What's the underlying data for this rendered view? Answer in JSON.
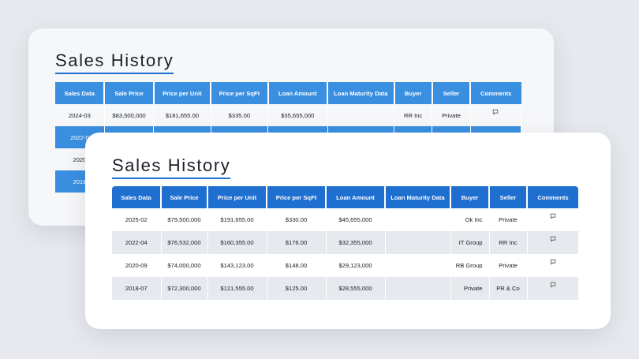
{
  "back_card": {
    "title": "Sales History",
    "columns": [
      "Sales Data",
      "Sale Price",
      "Price per Unit",
      "Price per SqFt",
      "Loan Amount",
      "Loan Maturity Data",
      "Buyer",
      "Seller",
      "Comments"
    ],
    "rows": [
      {
        "date": "2024-03",
        "sale_price": "$83,500,000",
        "price_unit": "$181,655.00",
        "price_sqft": "$335.00",
        "loan": "$35,655,000",
        "maturity": "",
        "buyer": "RR Inc",
        "seller": "Private"
      },
      {
        "date": "2022-0",
        "sale_price": "",
        "price_unit": "",
        "price_sqft": "",
        "loan": "",
        "maturity": "",
        "buyer": "",
        "seller": ""
      },
      {
        "date": "2020",
        "sale_price": "",
        "price_unit": "",
        "price_sqft": "",
        "loan": "",
        "maturity": "",
        "buyer": "",
        "seller": ""
      },
      {
        "date": "2018",
        "sale_price": "",
        "price_unit": "",
        "price_sqft": "",
        "loan": "",
        "maturity": "",
        "buyer": "",
        "seller": ""
      }
    ]
  },
  "front_card": {
    "title": "Sales History",
    "columns": [
      "Sales Data",
      "Sale Price",
      "Price per Unit",
      "Price per SqFt",
      "Loan Amount",
      "Loan Maturity Data",
      "Buyer",
      "Seller",
      "Comments"
    ],
    "rows": [
      {
        "date": "2025-02",
        "sale_price": "$79,500,000",
        "price_unit": "$191,655.00",
        "price_sqft": "$330.00",
        "loan": "$45,655,000",
        "maturity": "",
        "buyer": "Ok Inc",
        "seller": "Private"
      },
      {
        "date": "2022-04",
        "sale_price": "$76,532,000",
        "price_unit": "$160,355.00",
        "price_sqft": "$176.00",
        "loan": "$32,355,000",
        "maturity": "",
        "buyer": "IT Group",
        "seller": "RR Inc"
      },
      {
        "date": "2020-09",
        "sale_price": "$74,000,000",
        "price_unit": "$143,123.00",
        "price_sqft": "$148.00",
        "loan": "$29,123,000",
        "maturity": "",
        "buyer": "RB Group",
        "seller": "Private"
      },
      {
        "date": "2018-07",
        "sale_price": "$72,300,000",
        "price_unit": "$121,555.00",
        "price_sqft": "$125.00",
        "loan": "$28,555,000",
        "maturity": "",
        "buyer": "Private",
        "seller": "PR & Co"
      }
    ]
  },
  "icons": {
    "comment": "speech-bubble-icon"
  },
  "colors": {
    "header_blue_front": "#1f6fd1",
    "header_blue_back": "#3a8fe0",
    "row_alt": "#e6e9ee",
    "page_bg": "#e7e9ee"
  }
}
